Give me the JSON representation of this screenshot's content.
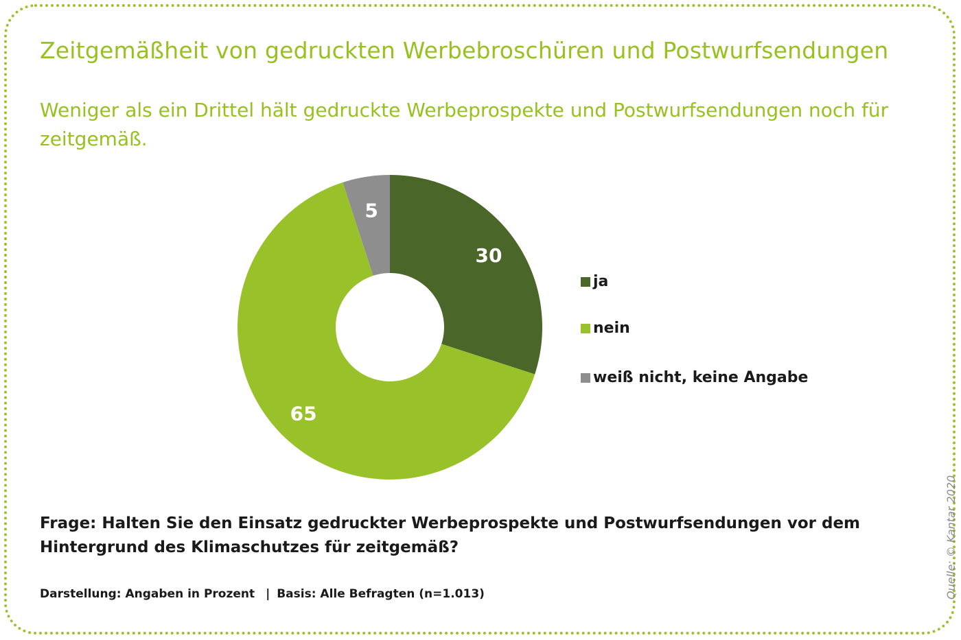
{
  "title": "Zeitgemäßheit von gedruckten Werbebroschüren und Postwurfsendungen",
  "subtitle": "Weniger als ein Drittel hält gedruckte Werbeprospekte und Postwurfsendungen noch für zeitgemäß.",
  "question": "Frage: Halten Sie den Einsatz gedruckter Werbeprospekte und Postwurfsendungen vor dem Hintergrund des Klimaschutzes für zeitgemäß?",
  "footer": {
    "darstellung": "Darstellung: Angaben in Prozent",
    "separator": "|",
    "basis": "Basis: Alle Befragten (n=1.013)"
  },
  "source": "Quelle: © Kantar 2020",
  "chart_data": {
    "type": "pie",
    "style": "donut",
    "start_angle_deg": 0,
    "direction": "clockwise",
    "legend_position": "right",
    "categories": [
      "ja",
      "nein",
      "weiß nicht, keine Angabe"
    ],
    "values": [
      30,
      65,
      5
    ],
    "data_labels": [
      "30",
      "65",
      "5"
    ],
    "colors": [
      "#4a6629",
      "#98c12a",
      "#8e8e8e"
    ]
  }
}
